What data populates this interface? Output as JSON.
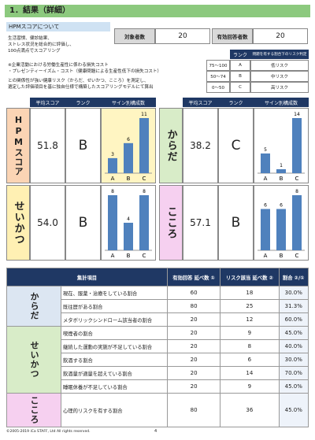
{
  "header": {
    "title": "1．結果（詳細）"
  },
  "about": {
    "title": "HPMスコアについて",
    "lines": [
      "生活習慣、健診結果、",
      "ストレス状況を総合的に評価し、",
      "100点満点でスコアリング",
      "※企業活動における労働生産性に係わる損失コスト",
      "・プレゼンティーイズム・コスト（健康問題による生産性低下の損失コスト）",
      "との関係性が強い健康リスク（からだ、せいかつ、こころ）を測定し、",
      "選定した評価項目を基に独自仕様で構築したスコアリングモデルにて算出"
    ]
  },
  "counts": [
    {
      "label": "対象者数",
      "value": "20"
    },
    {
      "label": "有効回答者数",
      "value": "20"
    }
  ],
  "rank_table": {
    "headers": [
      "ランク",
      "問題を有する割合下のリスク判定"
    ],
    "rows": [
      [
        "75～100",
        "A",
        "低リスク"
      ],
      [
        "50～74",
        "B",
        "中リスク"
      ],
      [
        "0～50",
        "C",
        "高リスク"
      ]
    ]
  },
  "score_headers": [
    "平均スコア",
    "ランク",
    "サイン別構成数"
  ],
  "panels": [
    {
      "label": "HPMスコア",
      "score": "51.8",
      "rank": "B",
      "chart": {
        "type": "bar",
        "categories": [
          "A",
          "B",
          "C"
        ],
        "values": [
          3,
          6,
          11
        ],
        "ylim": [
          0,
          11
        ]
      }
    },
    {
      "label": "からだ",
      "score": "38.2",
      "rank": "C",
      "chart": {
        "type": "bar",
        "categories": [
          "A",
          "B",
          "C"
        ],
        "values": [
          5,
          1,
          14
        ],
        "ylim": [
          0,
          14
        ]
      }
    },
    {
      "label": "せいかつ",
      "score": "54.0",
      "rank": "B",
      "chart": {
        "type": "bar",
        "categories": [
          "A",
          "B",
          "C"
        ],
        "values": [
          8,
          4,
          8
        ],
        "ylim": [
          0,
          8
        ]
      }
    },
    {
      "label": "こころ",
      "score": "57.1",
      "rank": "B",
      "chart": {
        "type": "bar",
        "categories": [
          "A",
          "B",
          "C"
        ],
        "values": [
          6,
          6,
          8
        ],
        "ylim": [
          0,
          8
        ]
      }
    }
  ],
  "table": {
    "headers": [
      "集計項目",
      "有効回答 延べ数 ①",
      "リスク該当 延べ数 ②",
      "割合 ②/①"
    ],
    "groups": [
      {
        "label": "からだ",
        "rows": [
          [
            "現在、服薬・治療をしている割合",
            "60",
            "18",
            "30.0%"
          ],
          [
            "既往歴がある割合",
            "80",
            "25",
            "31.3%"
          ],
          [
            "メタボリックシンドローム該当者の割合",
            "20",
            "12",
            "60.0%"
          ]
        ]
      },
      {
        "label": "せいかつ",
        "rows": [
          [
            "喫煙者の割合",
            "20",
            "9",
            "45.0%"
          ],
          [
            "継続した運動の実施が不足している割合",
            "20",
            "8",
            "40.0%"
          ],
          [
            "飲酒する割合",
            "20",
            "6",
            "30.0%"
          ],
          [
            "飲酒量が適量を超えている割合",
            "20",
            "14",
            "70.0%"
          ],
          [
            "睡眠休養が不足している割合",
            "20",
            "9",
            "45.0%"
          ]
        ]
      },
      {
        "label": "こころ",
        "rows": [
          [
            "心理的リスクを有する割合",
            "80",
            "36",
            "45.0%"
          ]
        ]
      }
    ]
  },
  "footer": {
    "copyright": "©2005-2019 iCa STAFF, Ltd All rights reserved.",
    "page": "4"
  }
}
